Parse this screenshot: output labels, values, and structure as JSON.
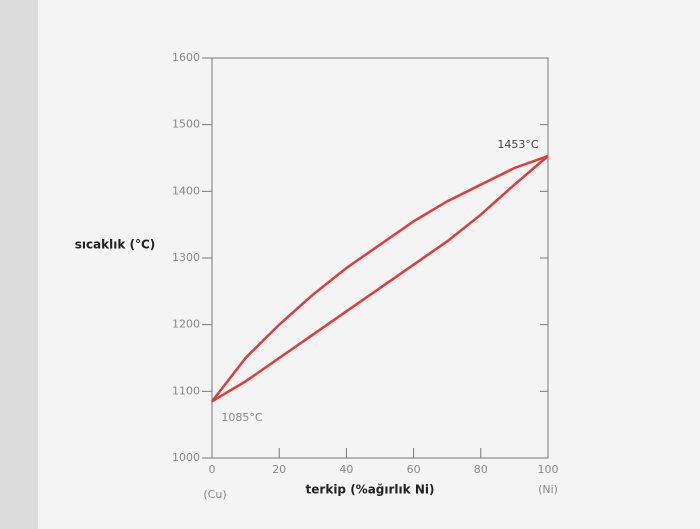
{
  "chart_data": {
    "type": "line",
    "y_label": "sıcaklık (°C)",
    "x_label": "terkip (%ağırlık Ni)",
    "annotations": [
      "1453°C",
      "1085°C",
      "(Cu)",
      "(Ni)"
    ],
    "x": [
      0,
      10,
      20,
      30,
      40,
      50,
      60,
      70,
      80,
      90,
      100
    ],
    "series": [
      {
        "color": "#e23b3b",
        "values": [
          1085,
          1150,
          1200,
          1245,
          1285,
          1320,
          1355,
          1385,
          1410,
          1435,
          1453
        ]
      },
      {
        "color": "#e23b3b",
        "values": [
          1085,
          1115,
          1150,
          1185,
          1220,
          1255,
          1290,
          1325,
          1365,
          1410,
          1453
        ]
      }
    ],
    "xlim": [
      0,
      100
    ],
    "xticks": [
      0,
      20,
      40,
      60,
      80,
      100
    ],
    "ylim": [
      1000,
      1600
    ],
    "yticks": [
      1000,
      1100,
      1200,
      1300,
      1400,
      1500,
      1600
    ]
  }
}
